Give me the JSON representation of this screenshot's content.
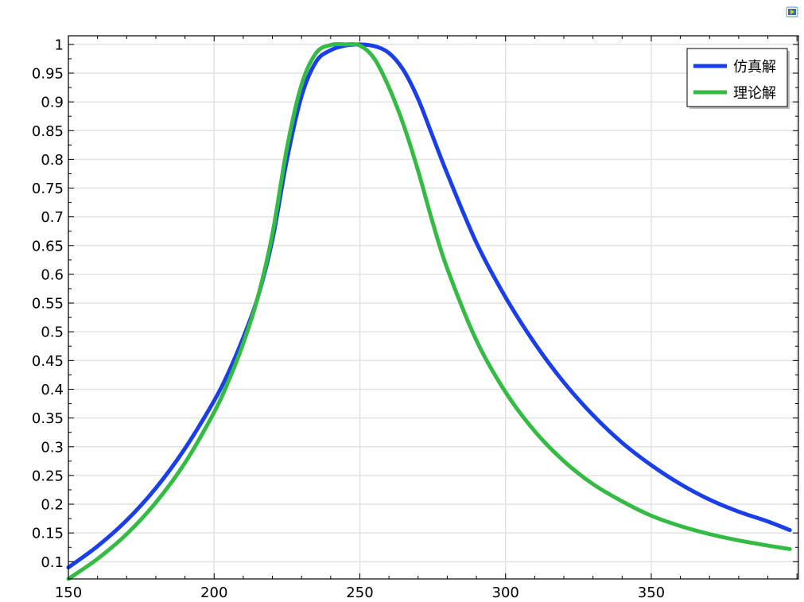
{
  "chart_data": {
    "type": "line",
    "title": "",
    "xlabel": "",
    "ylabel": "",
    "xlim": [
      150,
      400
    ],
    "ylim": [
      0.07,
      1.015
    ],
    "x_ticks": [
      150,
      200,
      250,
      300,
      350
    ],
    "y_ticks": [
      0.1,
      0.15,
      0.2,
      0.25,
      0.3,
      0.35,
      0.4,
      0.45,
      0.5,
      0.55,
      0.6,
      0.65,
      0.7,
      0.75,
      0.8,
      0.85,
      0.9,
      0.95,
      1
    ],
    "y_tick_labels": [
      "0.1",
      "0.15",
      "0.2",
      "0.25",
      "0.3",
      "0.35",
      "0.4",
      "0.45",
      "0.5",
      "0.55",
      "0.6",
      "0.65",
      "0.7",
      "0.75",
      "0.8",
      "0.85",
      "0.9",
      "0.95",
      "1"
    ],
    "x_tick_labels": [
      "150",
      "200",
      "250",
      "300",
      "350"
    ],
    "grid": true,
    "legend_position": "top-right",
    "series": [
      {
        "name": "仿真解",
        "color": "#1a3ee8",
        "x": [
          150,
          160,
          170,
          180,
          190,
          200,
          205,
          210,
          215,
          220,
          225,
          230,
          235,
          240,
          245,
          250,
          255,
          260,
          265,
          270,
          275,
          280,
          290,
          300,
          310,
          320,
          330,
          340,
          350,
          360,
          370,
          380,
          390,
          400
        ],
        "y": [
          0.09,
          0.127,
          0.172,
          0.228,
          0.297,
          0.38,
          0.43,
          0.49,
          0.56,
          0.66,
          0.8,
          0.91,
          0.97,
          0.99,
          0.998,
          1.0,
          0.997,
          0.985,
          0.955,
          0.905,
          0.84,
          0.775,
          0.655,
          0.56,
          0.48,
          0.412,
          0.355,
          0.307,
          0.268,
          0.235,
          0.208,
          0.187,
          0.17,
          0.155
        ]
      },
      {
        "name": "理论解",
        "color": "#33bb44",
        "x": [
          150,
          160,
          170,
          180,
          190,
          200,
          205,
          210,
          215,
          220,
          225,
          230,
          235,
          240,
          245,
          250,
          255,
          260,
          265,
          270,
          275,
          280,
          290,
          300,
          310,
          320,
          330,
          340,
          350,
          360,
          370,
          380,
          390,
          400
        ],
        "y": [
          0.07,
          0.105,
          0.148,
          0.203,
          0.272,
          0.36,
          0.415,
          0.48,
          0.56,
          0.67,
          0.82,
          0.93,
          0.985,
          0.999,
          1.0,
          0.998,
          0.975,
          0.925,
          0.86,
          0.78,
          0.69,
          0.61,
          0.485,
          0.395,
          0.327,
          0.275,
          0.235,
          0.205,
          0.18,
          0.162,
          0.148,
          0.137,
          0.128,
          0.122
        ]
      }
    ]
  },
  "toolbar": {
    "export_icon": "image-export-icon"
  }
}
